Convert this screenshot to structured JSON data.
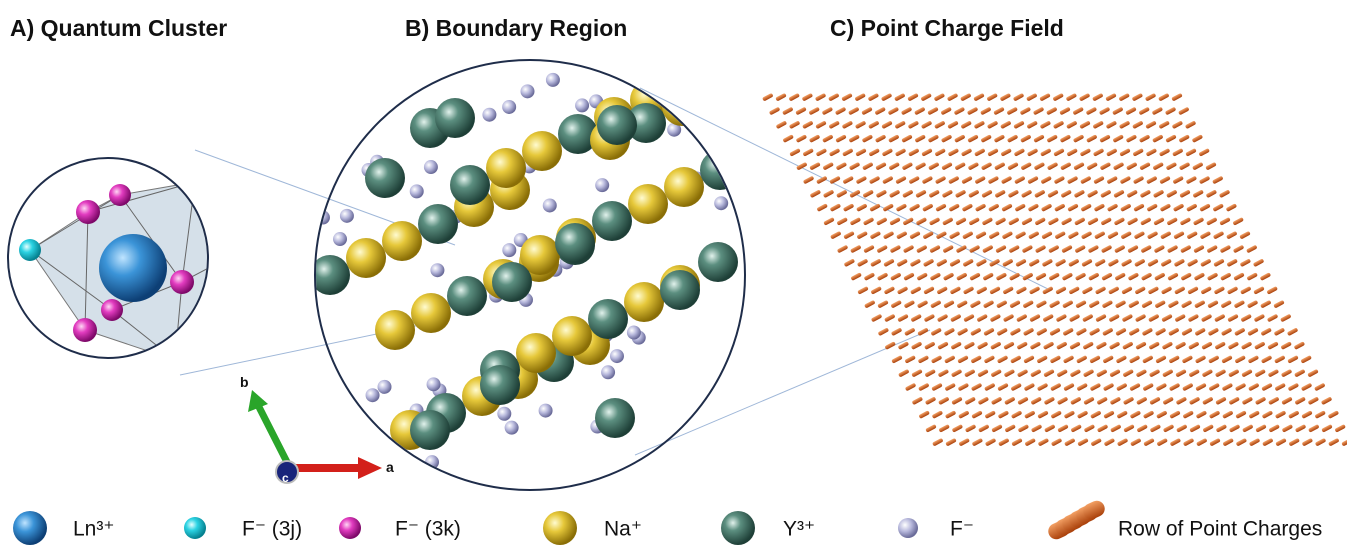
{
  "panels": [
    {
      "title": "A) Quantum Cluster"
    },
    {
      "title": "B) Boundary Region"
    },
    {
      "title": "C) Point Charge Field"
    }
  ],
  "axes": {
    "a": "a",
    "b": "b",
    "c": "c"
  },
  "legend": [
    {
      "label": "Ln³⁺"
    },
    {
      "label": "F⁻ (3j)"
    },
    {
      "label": "F⁻ (3k)"
    },
    {
      "label": "Na⁺"
    },
    {
      "label": "Y³⁺"
    },
    {
      "label": "F⁻"
    },
    {
      "label": "Row of Point Charges"
    }
  ]
}
